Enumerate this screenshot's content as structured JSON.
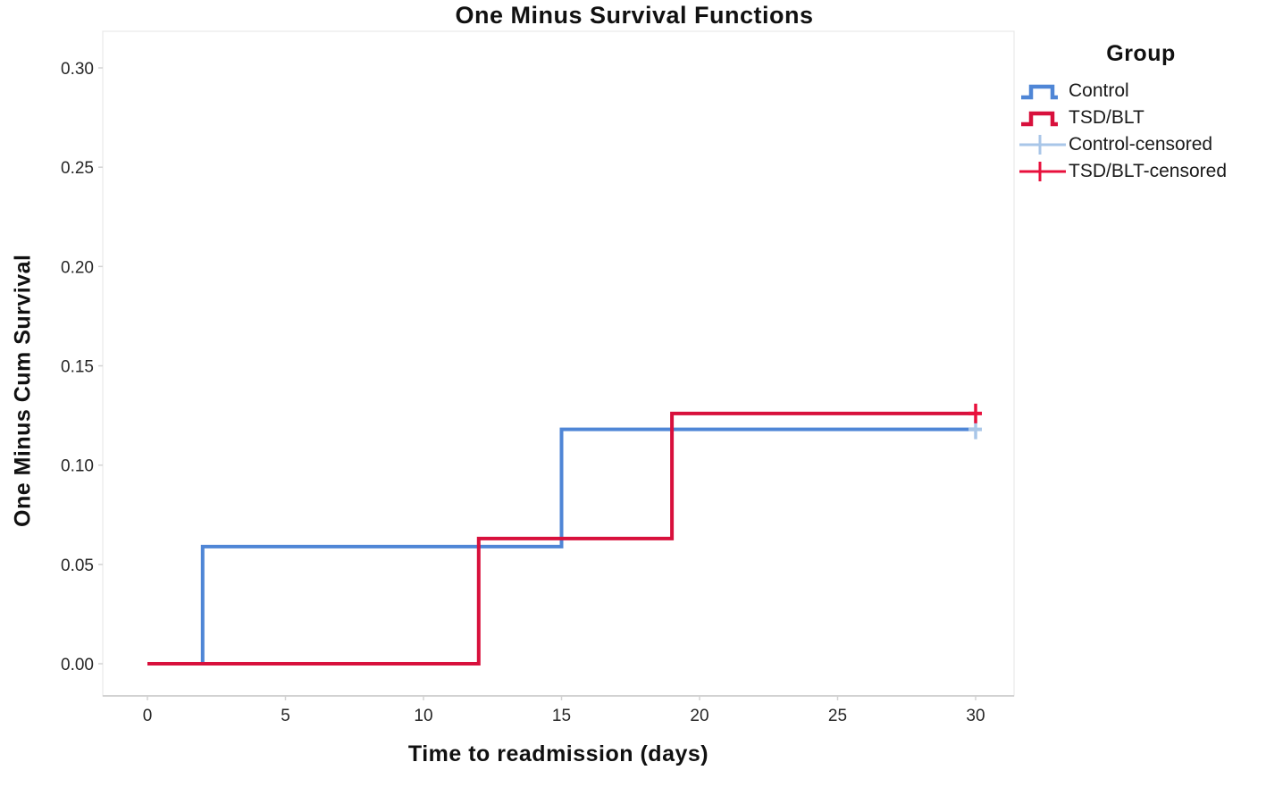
{
  "figure": {
    "background": "#ffffff"
  },
  "chart_data": {
    "type": "line",
    "subtype": "kaplan-meier-step",
    "title": "One Minus Survival Functions",
    "xlabel": "Time to readmission (days)",
    "ylabel": "One Minus Cum Survival",
    "xlim": [
      0,
      30
    ],
    "ylim": [
      0,
      0.3
    ],
    "xticks": [
      0,
      5,
      10,
      15,
      20,
      25,
      30
    ],
    "yticks": [
      0,
      0.05,
      0.1,
      0.15,
      0.2,
      0.25,
      0.3
    ],
    "ytick_labels": [
      "0.00",
      "0.05",
      "0.10",
      "0.15",
      "0.20",
      "0.25",
      "0.30"
    ],
    "xtick_labels": [
      "0",
      "5",
      "10",
      "15",
      "20",
      "25",
      "30"
    ],
    "grid": false,
    "frame_color": "#e4e4e4",
    "axis_line_color": "#d2d2d2",
    "legend_position": "top-right",
    "series": [
      {
        "name": "Control",
        "color": "#4f86d6",
        "step_points": [
          [
            0,
            0
          ],
          [
            2,
            0
          ],
          [
            2,
            0.059
          ],
          [
            15,
            0.059
          ],
          [
            15,
            0.118
          ],
          [
            30,
            0.118
          ]
        ],
        "events": [
          {
            "time": 2,
            "cum_incidence": 0.059
          },
          {
            "time": 15,
            "cum_incidence": 0.118
          }
        ],
        "censored_points": [
          [
            30,
            0.118
          ]
        ],
        "censor_color": "#a8c6e8"
      },
      {
        "name": "TSD/BLT",
        "color": "#d8103c",
        "step_points": [
          [
            0,
            0
          ],
          [
            12,
            0
          ],
          [
            12,
            0.063
          ],
          [
            19,
            0.063
          ],
          [
            19,
            0.126
          ],
          [
            30,
            0.126
          ]
        ],
        "events": [
          {
            "time": 12,
            "cum_incidence": 0.063
          },
          {
            "time": 19,
            "cum_incidence": 0.126
          }
        ],
        "censored_points": [
          [
            30,
            0.126
          ]
        ],
        "censor_color": "#e8103c"
      }
    ]
  },
  "legend": {
    "title": "Group",
    "entries": [
      {
        "label": "Control",
        "color": "#4f86d6",
        "marker": "step"
      },
      {
        "label": "TSD/BLT",
        "color": "#d8103c",
        "marker": "step"
      },
      {
        "label": "Control-censored",
        "color": "#a8c6e8",
        "marker": "plus"
      },
      {
        "label": "TSD/BLT-censored",
        "color": "#e8103c",
        "marker": "plus"
      }
    ]
  }
}
